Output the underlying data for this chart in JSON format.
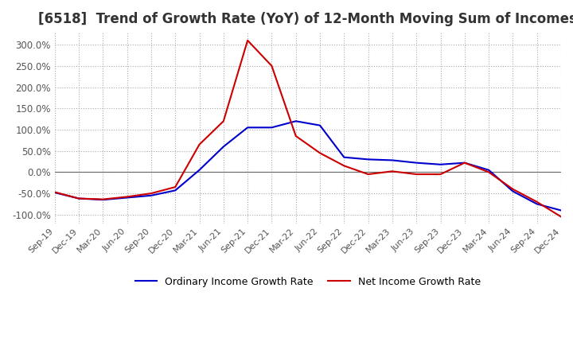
{
  "title": "[6518]  Trend of Growth Rate (YoY) of 12-Month Moving Sum of Incomes",
  "legend_labels": [
    "Ordinary Income Growth Rate",
    "Net Income Growth Rate"
  ],
  "line_colors": [
    "#0000cc",
    "#cc0000"
  ],
  "x_labels": [
    "Sep-19",
    "Dec-19",
    "Mar-20",
    "Jun-20",
    "Sep-20",
    "Dec-20",
    "Mar-21",
    "Jun-21",
    "Sep-21",
    "Dec-21",
    "Mar-22",
    "Jun-22",
    "Sep-22",
    "Dec-22",
    "Mar-23",
    "Jun-23",
    "Sep-23",
    "Dec-23",
    "Mar-24",
    "Jun-24",
    "Sep-24",
    "Dec-24"
  ],
  "ordinary_income": [
    -48,
    -62,
    -65,
    -60,
    -55,
    -43,
    5,
    60,
    105,
    105,
    120,
    110,
    35,
    30,
    28,
    22,
    18,
    22,
    5,
    -45,
    -75,
    -90
  ],
  "net_income": [
    -47,
    -62,
    -64,
    -58,
    -50,
    -35,
    65,
    120,
    310,
    250,
    85,
    45,
    15,
    -5,
    2,
    -5,
    -5,
    22,
    0,
    -40,
    -70,
    -105
  ],
  "ylim": [
    -120,
    330
  ],
  "yticks": [
    -100,
    -50,
    0,
    50,
    100,
    150,
    200,
    250,
    300
  ],
  "background_color": "#ffffff",
  "grid_color": "#aaaaaa",
  "title_fontsize": 12,
  "title_color": "#333333"
}
